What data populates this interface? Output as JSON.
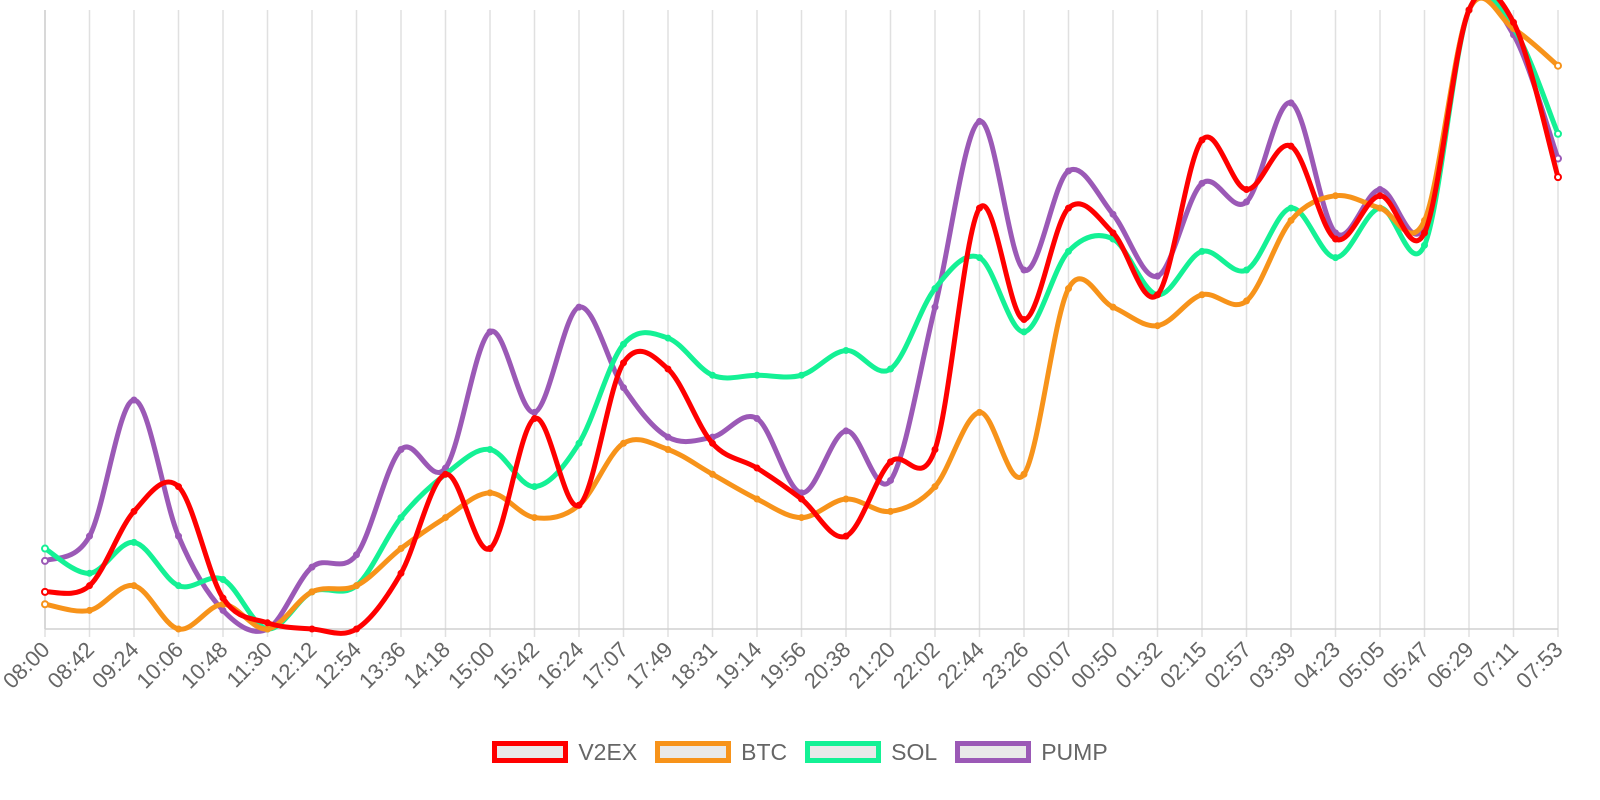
{
  "chart_data": {
    "type": "line",
    "title": "",
    "xlabel": "",
    "ylabel": "",
    "ylim": [
      0,
      100
    ],
    "grid": true,
    "legend_position": "bottom-center",
    "categories": [
      "08:00",
      "08:42",
      "09:24",
      "10:06",
      "10:48",
      "11:30",
      "12:12",
      "12:54",
      "13:36",
      "14:18",
      "15:00",
      "15:42",
      "16:24",
      "17:07",
      "17:49",
      "18:31",
      "19:14",
      "19:56",
      "20:38",
      "21:20",
      "22:02",
      "22:44",
      "23:26",
      "00:07",
      "00:50",
      "01:32",
      "02:15",
      "02:57",
      "03:39",
      "04:23",
      "05:05",
      "05:47",
      "06:29",
      "07:11",
      "07:53"
    ],
    "series": [
      {
        "name": "V2EX",
        "color": "#ff0000",
        "values": [
          6,
          7,
          19,
          23,
          5,
          1,
          0,
          0,
          9,
          25,
          13,
          34,
          20,
          43,
          42,
          30,
          26,
          21,
          15,
          27,
          29,
          68,
          50,
          68,
          64,
          54,
          79,
          71,
          78,
          63,
          70,
          64,
          100,
          98,
          73
        ]
      },
      {
        "name": "BTC",
        "color": "#f7931a",
        "values": [
          4,
          3,
          7,
          0,
          4,
          0,
          6,
          7,
          13,
          18,
          22,
          18,
          20,
          30,
          29,
          25,
          21,
          18,
          21,
          19,
          23,
          35,
          25,
          55,
          52,
          49,
          54,
          53,
          66,
          70,
          68,
          66,
          100,
          97,
          91
        ]
      },
      {
        "name": "SOL",
        "color": "#14f195",
        "values": [
          13,
          9,
          14,
          7,
          8,
          0,
          6,
          7,
          18,
          25,
          29,
          23,
          30,
          46,
          47,
          41,
          41,
          41,
          45,
          42,
          55,
          60,
          48,
          61,
          63,
          54,
          61,
          58,
          68,
          60,
          68,
          62,
          100,
          97,
          80
        ]
      },
      {
        "name": "PUMP",
        "color": "#9b59b6",
        "values": [
          11,
          15,
          37,
          15,
          3,
          0,
          10,
          12,
          29,
          26,
          48,
          35,
          52,
          39,
          31,
          31,
          34,
          22,
          32,
          24,
          52,
          82,
          58,
          74,
          67,
          57,
          72,
          69,
          85,
          64,
          71,
          65,
          100,
          96,
          76
        ]
      }
    ]
  }
}
